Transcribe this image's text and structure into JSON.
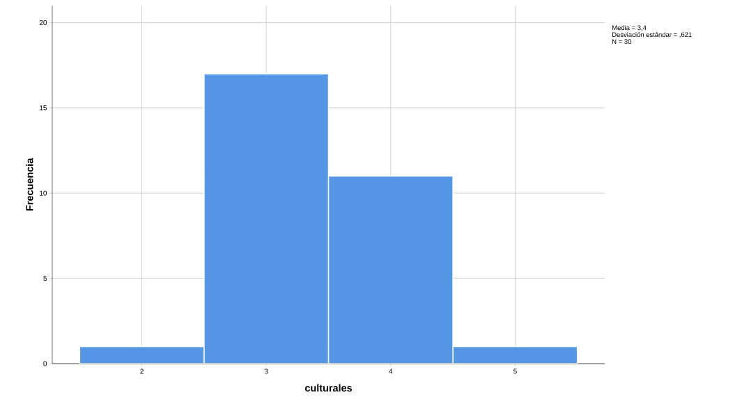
{
  "chart_data": {
    "type": "histogram",
    "xlabel": "culturales",
    "ylabel": "Frecuencia",
    "bins": [
      1.5,
      2.5,
      3.5,
      4.5,
      5.5
    ],
    "values": [
      1,
      17,
      11,
      1
    ],
    "color": "#5596e6",
    "xlim": [
      1.28,
      5.72
    ],
    "xticks": [
      2,
      3,
      4,
      5
    ],
    "ylim": [
      0,
      21
    ],
    "yticks": [
      0,
      5,
      10,
      15,
      20
    ],
    "grid": true,
    "annotations": [
      "Media = 3,4",
      "Desviación estándar = ,621",
      "N = 30"
    ]
  }
}
